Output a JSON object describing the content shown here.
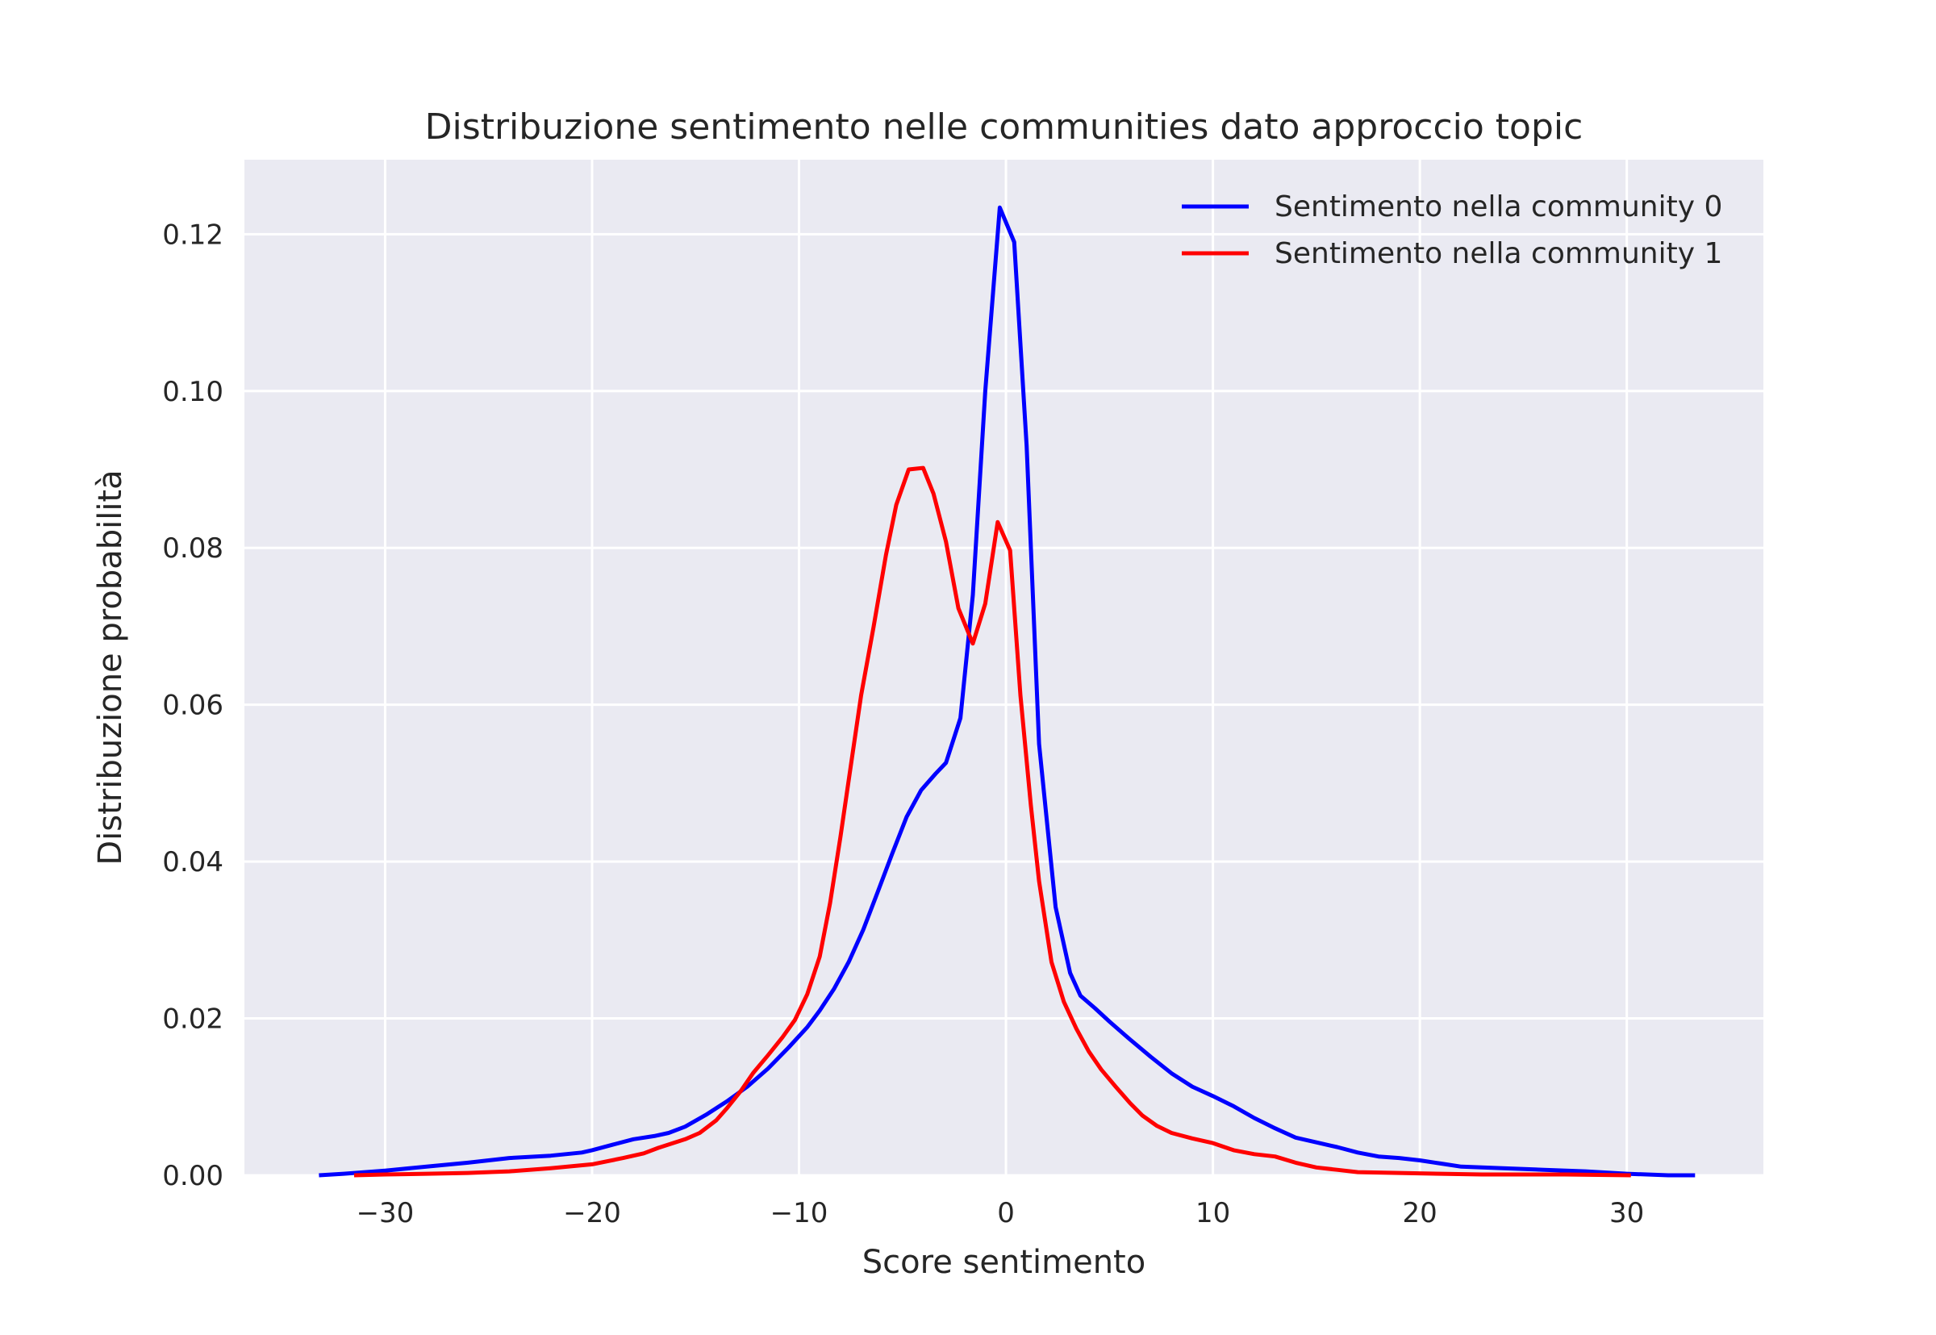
{
  "chart_data": {
    "type": "line",
    "title": "Distribuzione sentimento nelle communities dato approccio topic",
    "xlabel": "Score sentimento",
    "ylabel": "Distribuzione probabilità",
    "xlim": [
      -36.8,
      36.6
    ],
    "ylim": [
      0.0,
      0.1295
    ],
    "xticks": [
      -30,
      -20,
      -10,
      0,
      10,
      20,
      30
    ],
    "xtick_labels": [
      "−30",
      "−20",
      "−10",
      "0",
      "10",
      "20",
      "30"
    ],
    "yticks": [
      0.0,
      0.02,
      0.04,
      0.06,
      0.08,
      0.1,
      0.12
    ],
    "ytick_labels": [
      "0.00",
      "0.02",
      "0.04",
      "0.06",
      "0.08",
      "0.10",
      "0.12"
    ],
    "grid": true,
    "background": "#eaeaf2",
    "legend_position": "top-right",
    "series": [
      {
        "name": "Sentimento nella community 0",
        "color": "#0000ff",
        "x": [
          -33.2,
          -32,
          -30,
          -28,
          -26,
          -24,
          -22,
          -20.5,
          -20,
          -19,
          -18,
          -17,
          -16.3,
          -15.5,
          -14.5,
          -13.5,
          -12.5,
          -11.5,
          -10.5,
          -9.6,
          -9,
          -8.3,
          -7.6,
          -6.9,
          -6.2,
          -5.5,
          -4.8,
          -4.1,
          -3.4,
          -2.9,
          -2.2,
          -1.6,
          -1.0,
          -0.3,
          0.4,
          1.0,
          1.6,
          2.4,
          3.1,
          3.6,
          4.3,
          5.0,
          6.0,
          7.0,
          8.0,
          9.0,
          10.0,
          11.0,
          12.0,
          13.0,
          14.0,
          15.0,
          16.0,
          17.0,
          18.0,
          19.0,
          20.0,
          21.0,
          22.0,
          24.0,
          26.0,
          28.0,
          30.0,
          32.0,
          33.3
        ],
        "y": [
          0.0,
          0.0002,
          0.0006,
          0.0011,
          0.0016,
          0.0022,
          0.0025,
          0.0029,
          0.0032,
          0.0039,
          0.0046,
          0.005,
          0.0054,
          0.0062,
          0.0077,
          0.0094,
          0.0113,
          0.0136,
          0.0163,
          0.0189,
          0.021,
          0.0238,
          0.0272,
          0.0313,
          0.0361,
          0.041,
          0.0457,
          0.0491,
          0.0512,
          0.0526,
          0.0583,
          0.074,
          0.1,
          0.1234,
          0.119,
          0.093,
          0.055,
          0.0342,
          0.0258,
          0.0229,
          0.0213,
          0.0196,
          0.0173,
          0.0151,
          0.013,
          0.0113,
          0.0101,
          0.0088,
          0.0073,
          0.006,
          0.0048,
          0.0042,
          0.0036,
          0.0029,
          0.0024,
          0.0022,
          0.0019,
          0.0015,
          0.0011,
          0.0009,
          0.0007,
          0.0005,
          0.0002,
          0.0,
          0.0
        ]
      },
      {
        "name": "Sentimento nella community 1",
        "color": "#ff0000",
        "x": [
          -31.5,
          -30,
          -28,
          -26,
          -24,
          -22,
          -20,
          -18.5,
          -17.5,
          -16.8,
          -15.5,
          -14.8,
          -14,
          -13.5,
          -12.8,
          -12.2,
          -11.5,
          -10.8,
          -10.2,
          -9.6,
          -9.0,
          -8.5,
          -8.0,
          -7.5,
          -7.0,
          -6.4,
          -5.8,
          -5.3,
          -4.7,
          -4.0,
          -3.5,
          -2.9,
          -2.3,
          -1.6,
          -1.0,
          -0.4,
          0.2,
          0.7,
          1.2,
          1.6,
          2.2,
          2.8,
          3.4,
          4.0,
          4.6,
          5.3,
          6.0,
          6.6,
          7.3,
          8.0,
          9.0,
          10.0,
          11.0,
          12.0,
          13.0,
          14.0,
          15.0,
          16.0,
          17.0,
          19.0,
          21.0,
          23.0,
          25.0,
          27.0,
          30.2
        ],
        "y": [
          0.0,
          0.0001,
          0.0002,
          0.0003,
          0.0005,
          0.0009,
          0.0014,
          0.0022,
          0.0028,
          0.0035,
          0.0046,
          0.0054,
          0.007,
          0.0085,
          0.0108,
          0.0131,
          0.0153,
          0.0176,
          0.0198,
          0.0231,
          0.0279,
          0.0347,
          0.0431,
          0.0522,
          0.0612,
          0.0699,
          0.0791,
          0.0855,
          0.09,
          0.0902,
          0.0869,
          0.0808,
          0.0723,
          0.0678,
          0.0729,
          0.0833,
          0.0797,
          0.0612,
          0.0472,
          0.0375,
          0.0272,
          0.0221,
          0.0187,
          0.0158,
          0.0135,
          0.0113,
          0.0092,
          0.0076,
          0.0063,
          0.0054,
          0.0047,
          0.0041,
          0.0032,
          0.0027,
          0.0024,
          0.0016,
          0.001,
          0.0007,
          0.0004,
          0.0003,
          0.0002,
          0.0001,
          0.0001,
          0.0001,
          0.0
        ]
      }
    ]
  }
}
